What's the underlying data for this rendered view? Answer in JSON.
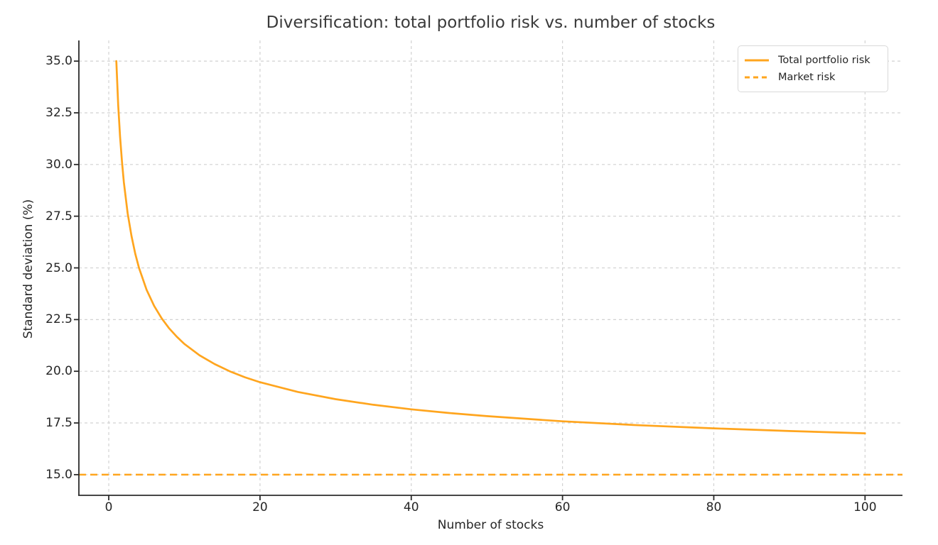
{
  "chart_data": {
    "type": "line",
    "title": "Diversification: total portfolio risk vs. number of stocks",
    "xlabel": "Number of stocks",
    "ylabel": "Standard deviation (%)",
    "xlim": [
      -3.95,
      104.95
    ],
    "ylim": [
      14,
      36
    ],
    "xticks": [
      "0",
      "20",
      "40",
      "60",
      "80",
      "100"
    ],
    "yticks": [
      "15.0",
      "17.5",
      "20.0",
      "22.5",
      "25.0",
      "27.5",
      "30.0",
      "32.5",
      "35.0"
    ],
    "grid": true,
    "grid_style": "dashed",
    "legend_position": "upper right",
    "colors": {
      "line_orange": "#FFA51E",
      "grid": "#d2d2d2",
      "spine": "#2b2b2b",
      "text": "#262626",
      "title": "#3a3a3a",
      "background": "#ffffff"
    },
    "series": [
      {
        "name": "Total portfolio risk",
        "style": "solid",
        "x": [
          1,
          1.25,
          1.5,
          1.75,
          2,
          2.5,
          3,
          3.5,
          4,
          5,
          6,
          7,
          8,
          9,
          10,
          12,
          14,
          16,
          18,
          20,
          25,
          30,
          35,
          40,
          45,
          50,
          60,
          70,
          80,
          90,
          100
        ],
        "y": [
          35.0,
          32.89,
          31.33,
          30.12,
          29.14,
          27.65,
          26.55,
          25.69,
          25.0,
          23.94,
          23.16,
          22.56,
          22.07,
          21.67,
          21.32,
          20.77,
          20.35,
          20.0,
          19.71,
          19.47,
          19.0,
          18.65,
          18.38,
          18.16,
          17.98,
          17.83,
          17.58,
          17.39,
          17.24,
          17.11,
          17.0
        ]
      },
      {
        "name": "Market risk",
        "style": "dashed",
        "y_const": 15.0
      }
    ]
  }
}
